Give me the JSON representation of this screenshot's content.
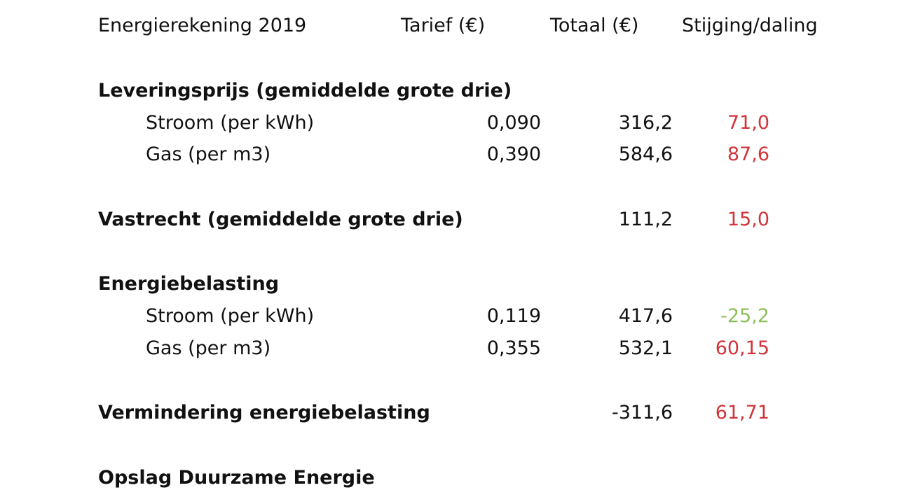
{
  "header": {
    "title": "Energierekening 2019",
    "tarief": "Tarief (€)",
    "totaal": "Totaal (€)",
    "change": "Stijging/daling"
  },
  "colors": {
    "increase": "#d13438",
    "decrease": "#8cbf5a",
    "text": "#111111"
  },
  "sections": {
    "levering": {
      "title": "Leveringsprijs (gemiddelde grote drie)",
      "rows": [
        {
          "label": "Stroom (per kWh)",
          "tarief": "0,090",
          "totaal": "316,2",
          "change": "71,0"
        },
        {
          "label": "Gas (per m3)",
          "tarief": "0,390",
          "totaal": "584,6",
          "change": "87,6"
        }
      ]
    },
    "vastrecht": {
      "title": "Vastrecht (gemiddelde grote drie)",
      "totaal": "111,2",
      "change": "15,0"
    },
    "energiebelasting": {
      "title": "Energiebelasting",
      "rows": [
        {
          "label": "Stroom (per kWh)",
          "tarief": "0,119",
          "totaal": "417,6",
          "change": "-25,2"
        },
        {
          "label": "Gas (per m3)",
          "tarief": "0,355",
          "totaal": "532,1",
          "change": "60,15"
        }
      ]
    },
    "vermindering": {
      "title": "Vermindering energiebelasting",
      "totaal": "-311,6",
      "change": "61,71"
    },
    "ode": {
      "title": "Opslag Duurzame Energie"
    }
  }
}
